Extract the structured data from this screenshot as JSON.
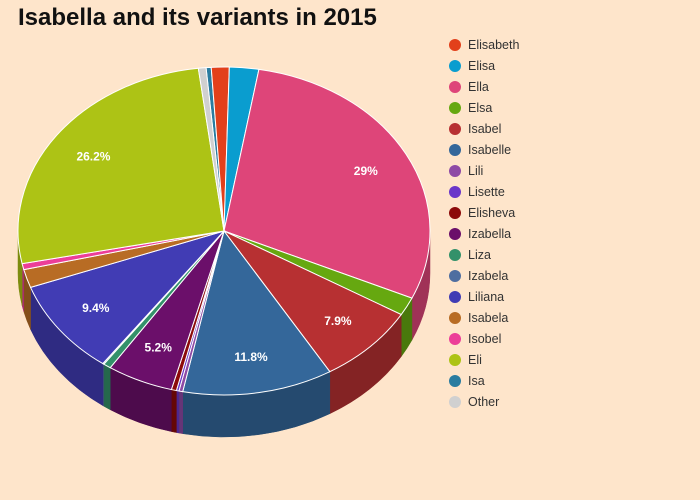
{
  "chart_data": {
    "type": "pie",
    "title": "Isabella and its variants in 2015",
    "start_angle_deg": -5,
    "direction": "clockwise",
    "slices": [
      {
        "name": "Isa",
        "value": 0.4,
        "color": "#2a7ca0",
        "label": ""
      },
      {
        "name": "Elisabeth",
        "value": 1.4,
        "color": "#e2401b",
        "label": ""
      },
      {
        "name": "Elisa",
        "value": 2.3,
        "color": "#0a9dcf",
        "label": ""
      },
      {
        "name": "Ella",
        "value": 29,
        "color": "#de4579",
        "label": "29%"
      },
      {
        "name": "Elsa",
        "value": 1.8,
        "color": "#66a810",
        "label": ""
      },
      {
        "name": "Isabel",
        "value": 7.9,
        "color": "#b73032",
        "label": "7.9%"
      },
      {
        "name": "Isabelle",
        "value": 11.8,
        "color": "#34679a",
        "label": "11.8%"
      },
      {
        "name": "Lili",
        "value": 0.3,
        "color": "#8e4aa5",
        "label": ""
      },
      {
        "name": "Lisette",
        "value": 0.2,
        "color": "#6a36c9",
        "label": ""
      },
      {
        "name": "Elisheva",
        "value": 0.4,
        "color": "#8c0a0a",
        "label": ""
      },
      {
        "name": "Izabella",
        "value": 5.2,
        "color": "#6b0f6a",
        "label": "5.2%"
      },
      {
        "name": "Liza",
        "value": 0.6,
        "color": "#33916a",
        "label": ""
      },
      {
        "name": "Izabela",
        "value": 0.1,
        "color": "#4f6ea0",
        "label": ""
      },
      {
        "name": "Liliana",
        "value": 9.4,
        "color": "#413cb4",
        "label": "9.4%"
      },
      {
        "name": "Isabela",
        "value": 1.8,
        "color": "#b86c24",
        "label": ""
      },
      {
        "name": "Isobel",
        "value": 0.6,
        "color": "#ec3e98",
        "label": ""
      },
      {
        "name": "Eli",
        "value": 26.2,
        "color": "#adc315",
        "label": "26.2%"
      },
      {
        "name": "Other",
        "value": 0.6,
        "color": "#d0d0d0",
        "label": ""
      }
    ],
    "legend": {
      "position": "right",
      "order": [
        "Elisabeth",
        "Elisa",
        "Ella",
        "Elsa",
        "Isabel",
        "Isabelle",
        "Lili",
        "Lisette",
        "Elisheva",
        "Izabella",
        "Liza",
        "Izabela",
        "Liliana",
        "Isabela",
        "Isobel",
        "Eli",
        "Isa",
        "Other"
      ]
    },
    "style": "3d-pie"
  }
}
